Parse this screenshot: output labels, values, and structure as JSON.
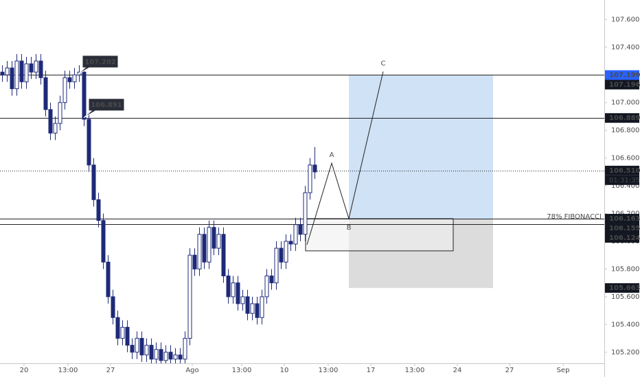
{
  "chart_data": {
    "type": "candlestick",
    "x": [
      3,
      10,
      17,
      24,
      31,
      38,
      45,
      52,
      59,
      66,
      73,
      80,
      87,
      94,
      101,
      108,
      115,
      122,
      129,
      136,
      143,
      150,
      157,
      164,
      171,
      178,
      185,
      192,
      199,
      206,
      213,
      220,
      227,
      234,
      241,
      248,
      255,
      262,
      269,
      276,
      283,
      290,
      297,
      304,
      311,
      318,
      325,
      332,
      339,
      346,
      353,
      360,
      367,
      374,
      381,
      388,
      395,
      402,
      409,
      416,
      423,
      430,
      437,
      444,
      451,
      458
    ],
    "open": [
      107.22,
      107.2,
      107.25,
      107.1,
      107.3,
      107.15,
      107.28,
      107.22,
      107.3,
      107.18,
      106.95,
      106.78,
      106.85,
      107.0,
      107.18,
      107.15,
      107.2,
      107.22,
      106.88,
      106.55,
      106.3,
      106.15,
      105.85,
      105.6,
      105.45,
      105.3,
      105.38,
      105.25,
      105.2,
      105.3,
      105.18,
      105.25,
      105.15,
      105.22,
      105.14,
      105.2,
      105.15,
      105.18,
      105.15,
      105.3,
      105.9,
      105.8,
      106.05,
      105.85,
      106.1,
      105.95,
      106.05,
      105.75,
      105.6,
      105.7,
      105.55,
      105.6,
      105.48,
      105.55,
      105.45,
      105.6,
      105.75,
      105.7,
      105.95,
      105.85,
      106.0,
      105.98,
      106.12,
      106.05,
      106.35,
      106.55
    ],
    "high": [
      107.27,
      107.3,
      107.3,
      107.35,
      107.35,
      107.33,
      107.33,
      107.35,
      107.35,
      107.23,
      107.0,
      106.9,
      107.05,
      107.23,
      107.23,
      107.25,
      107.27,
      107.27,
      106.93,
      106.6,
      106.35,
      106.2,
      105.9,
      105.65,
      105.5,
      105.43,
      105.43,
      105.3,
      105.35,
      105.35,
      105.3,
      105.3,
      105.27,
      105.27,
      105.25,
      105.25,
      105.23,
      105.23,
      105.35,
      105.95,
      105.95,
      106.1,
      106.1,
      106.15,
      106.15,
      106.1,
      106.1,
      105.8,
      105.75,
      105.75,
      105.65,
      105.65,
      105.6,
      105.6,
      105.65,
      105.8,
      105.8,
      106.0,
      106.0,
      106.05,
      106.05,
      106.17,
      106.17,
      106.4,
      106.6,
      106.68
    ],
    "low": [
      107.15,
      107.15,
      107.05,
      107.05,
      107.1,
      107.1,
      107.17,
      107.17,
      107.13,
      106.9,
      106.73,
      106.73,
      106.8,
      106.95,
      107.1,
      107.1,
      107.15,
      106.83,
      106.5,
      106.25,
      106.1,
      105.8,
      105.55,
      105.4,
      105.25,
      105.25,
      105.2,
      105.15,
      105.15,
      105.13,
      105.13,
      105.1,
      105.1,
      105.09,
      105.09,
      105.1,
      105.1,
      105.1,
      105.1,
      105.25,
      105.75,
      105.75,
      105.8,
      105.8,
      105.9,
      105.9,
      105.7,
      105.55,
      105.55,
      105.5,
      105.5,
      105.43,
      105.43,
      105.4,
      105.4,
      105.55,
      105.65,
      105.65,
      105.8,
      105.8,
      105.93,
      105.93,
      106.0,
      106.0,
      106.3,
      106.45
    ],
    "close": [
      107.2,
      107.25,
      107.1,
      107.3,
      107.15,
      107.28,
      107.22,
      107.3,
      107.18,
      106.95,
      106.78,
      106.85,
      107.0,
      107.18,
      107.15,
      107.2,
      107.22,
      106.88,
      106.55,
      106.3,
      106.15,
      105.85,
      105.6,
      105.45,
      105.3,
      105.38,
      105.25,
      105.2,
      105.3,
      105.18,
      105.25,
      105.15,
      105.22,
      105.14,
      105.2,
      105.15,
      105.18,
      105.15,
      105.3,
      105.9,
      105.8,
      106.05,
      105.85,
      106.1,
      105.95,
      106.05,
      105.75,
      105.6,
      105.7,
      105.55,
      105.6,
      105.48,
      105.55,
      105.45,
      105.6,
      105.75,
      105.7,
      105.95,
      105.85,
      106.0,
      105.98,
      106.12,
      106.05,
      106.35,
      106.55,
      106.5
    ],
    "up_color": "#ffffff",
    "down_color": "#1e2a78",
    "wick_color": "#1e2a78",
    "xlim": [
      0,
      880
    ],
    "xticks": [
      {
        "value": 35,
        "label": "20"
      },
      {
        "value": 99,
        "label": "13:00"
      },
      {
        "value": 161,
        "label": "27"
      },
      {
        "value": 280,
        "label": "Ago"
      },
      {
        "value": 352,
        "label": "13:00"
      },
      {
        "value": 414,
        "label": "10"
      },
      {
        "value": 478,
        "label": "13:00"
      },
      {
        "value": 540,
        "label": "17"
      },
      {
        "value": 604,
        "label": "13:00"
      },
      {
        "value": 666,
        "label": "24"
      },
      {
        "value": 742,
        "label": "27"
      },
      {
        "value": 820,
        "label": "Sep"
      }
    ],
    "ylim": [
      105.12,
      107.74
    ],
    "yticks": [
      {
        "value": 105.2,
        "label": "105.200"
      },
      {
        "value": 105.4,
        "label": "105.400"
      },
      {
        "value": 105.6,
        "label": "105.600"
      },
      {
        "value": 105.8,
        "label": "105.800"
      },
      {
        "value": 106.0,
        "label": "106.000"
      },
      {
        "value": 106.2,
        "label": "106.200"
      },
      {
        "value": 106.4,
        "label": "106.400"
      },
      {
        "value": 106.6,
        "label": "106.600"
      },
      {
        "value": 106.8,
        "label": "106.800"
      },
      {
        "value": 107.0,
        "label": "107.000"
      },
      {
        "value": 107.2,
        "label": "107.200"
      },
      {
        "value": 107.4,
        "label": "107.400"
      },
      {
        "value": 107.6,
        "label": "107.600"
      }
    ],
    "levels": [
      {
        "value": 107.199,
        "style": "solid"
      },
      {
        "value": 106.889,
        "style": "solid"
      },
      {
        "value": 106.51,
        "style": "dotted"
      },
      {
        "value": 106.163,
        "style": "solid"
      },
      {
        "value": 106.124,
        "style": "solid"
      }
    ],
    "price_tags": [
      {
        "value": 107.199,
        "label": "107.199",
        "bg": "#2962ff"
      },
      {
        "value": 107.196,
        "label": "107.196",
        "bg": "#131722"
      },
      {
        "value": 106.889,
        "label": "106.889",
        "bg": "#131722"
      },
      {
        "value": 106.51,
        "label": "106.510",
        "bg": "#131722"
      },
      {
        "value": 106.163,
        "label": "106.163",
        "bg": "#131722"
      },
      {
        "value": 106.155,
        "label": "106.155",
        "bg": "#131722"
      },
      {
        "value": 106.124,
        "label": "106.124",
        "bg": "#131722"
      },
      {
        "value": 105.663,
        "label": "105.663",
        "bg": "#131722"
      }
    ],
    "countdown": "01:31:35",
    "fib_label": "78% FIBONACCI",
    "callouts": [
      {
        "x": 113,
        "value": 107.202,
        "label": "107.202"
      },
      {
        "x": 122,
        "value": 106.891,
        "label": "106.891"
      }
    ],
    "position": {
      "x_start": 508,
      "x_end": 718,
      "entry": 106.163,
      "target": 107.199,
      "stop": 105.663,
      "target_color": "#cfe2f6",
      "stop_color": "#dcdcdc"
    },
    "box": {
      "x_start": 445,
      "x_end": 660,
      "top": 106.163,
      "bottom": 105.931
    },
    "abc": {
      "x": [
        447,
        483,
        508,
        558
      ],
      "y": [
        105.975,
        106.563,
        106.163,
        107.224
      ],
      "labels": [
        null,
        "A",
        "B",
        "C"
      ]
    }
  }
}
